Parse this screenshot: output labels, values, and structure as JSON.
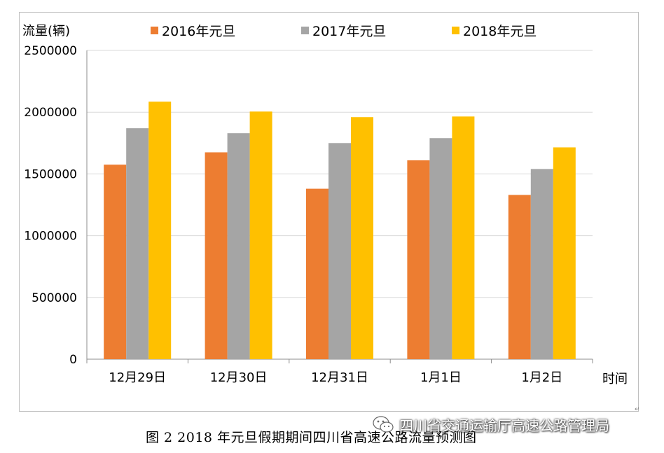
{
  "chart_data": {
    "type": "bar",
    "ylabel": "流量(辆)",
    "xlabel": "时间",
    "categories": [
      "12月29日",
      "12月30日",
      "12月31日",
      "1月1日",
      "1月2日"
    ],
    "series": [
      {
        "name": "2016年元旦",
        "color": "#ED7D31",
        "values": [
          1575000,
          1675000,
          1380000,
          1610000,
          1330000
        ]
      },
      {
        "name": "2017年元旦",
        "color": "#A5A5A5",
        "values": [
          1870000,
          1830000,
          1750000,
          1790000,
          1540000
        ]
      },
      {
        "name": "2018年元旦",
        "color": "#FFC000",
        "values": [
          2085000,
          2005000,
          1960000,
          1965000,
          1715000
        ]
      }
    ],
    "ylim": [
      0,
      2500000
    ],
    "yticks": [
      "0",
      "500000",
      "1000000",
      "1500000",
      "2000000",
      "2500000"
    ],
    "grid": true,
    "legend_position": "top"
  },
  "caption": "图 2  2018 年元旦假期期间四川省高速公路流量预测图",
  "watermark": {
    "text": "四川省交通运输厅高速公路管理局",
    "icon": "wechat-icon"
  }
}
